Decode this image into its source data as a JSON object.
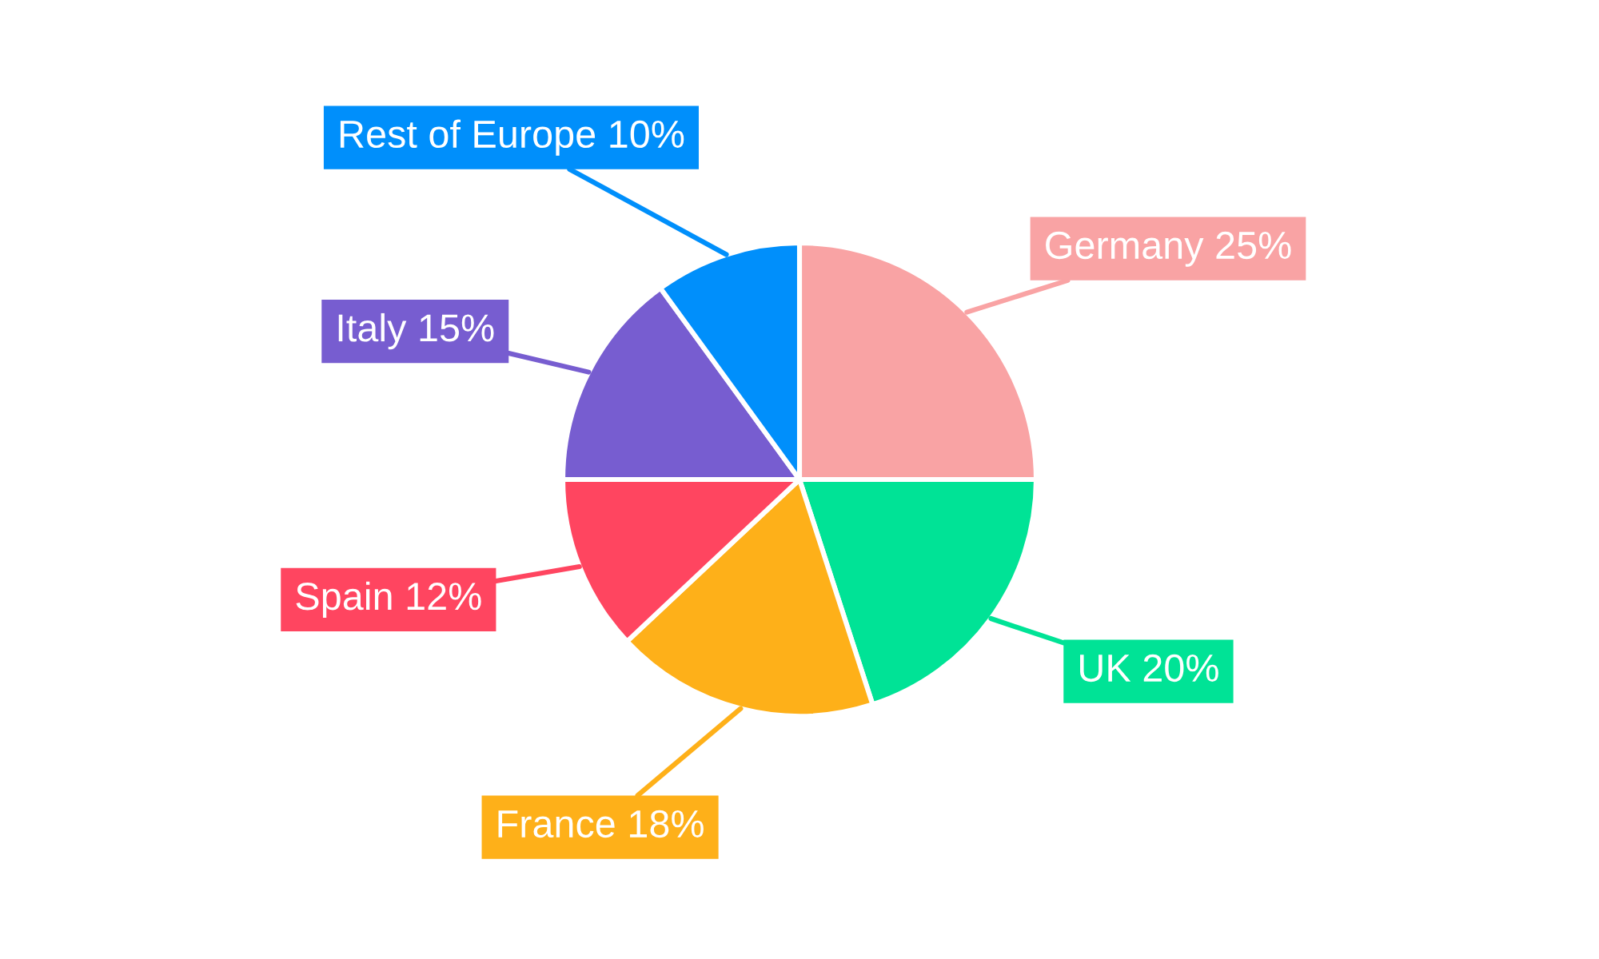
{
  "chart_data": {
    "type": "pie",
    "categories": [
      "Germany",
      "UK",
      "France",
      "Spain",
      "Italy",
      "Rest of Europe"
    ],
    "values": [
      25,
      20,
      18,
      12,
      15,
      10
    ],
    "colors": [
      "#f9a3a4",
      "#00e396",
      "#feb019",
      "#ff4560",
      "#775dd0",
      "#008ffb"
    ],
    "value_labels": [
      "25%",
      "20%",
      "18%",
      "12%",
      "15%",
      "10%"
    ]
  }
}
